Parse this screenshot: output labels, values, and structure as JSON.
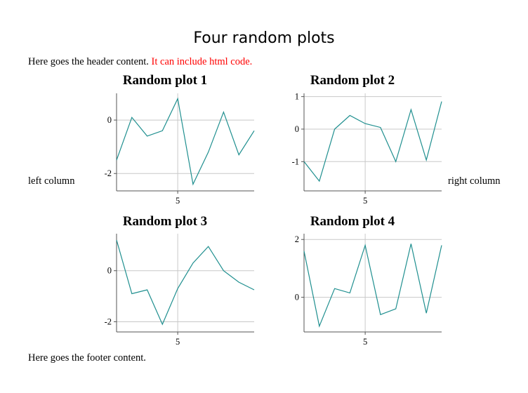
{
  "page": {
    "title": "Four random plots",
    "header_text": "Here goes the header content.",
    "header_red_text": "It can include html code.",
    "left_column": "left column",
    "right_column": "right column",
    "footer_text": "Here goes the footer content."
  },
  "colors": {
    "line": "#1f8f8f",
    "grid": "#c8c8c8",
    "axis": "#555555",
    "header_red": "#ff0000"
  },
  "chart_data": [
    {
      "type": "line",
      "title": "Random plot 1",
      "x": [
        1,
        2,
        3,
        4,
        5,
        6,
        7,
        8,
        9,
        10
      ],
      "y": [
        -1.5,
        0.1,
        -0.6,
        -0.4,
        0.8,
        -2.4,
        -1.2,
        0.3,
        -1.3,
        -0.4
      ],
      "xlim": [
        1,
        10
      ],
      "ylim": [
        -2.65,
        1.0
      ],
      "xticks": [
        5
      ],
      "yticks": [
        0,
        -2
      ],
      "grid": true
    },
    {
      "type": "line",
      "title": "Random plot 2",
      "x": [
        1,
        2,
        3,
        4,
        5,
        6,
        7,
        8,
        9,
        10
      ],
      "y": [
        -1.0,
        -1.6,
        0.0,
        0.42,
        0.17,
        0.05,
        -1.0,
        0.6,
        -0.95,
        0.85
      ],
      "xlim": [
        1,
        10
      ],
      "ylim": [
        -1.9,
        1.1
      ],
      "xticks": [
        5
      ],
      "yticks": [
        1,
        0,
        -1
      ],
      "grid": true
    },
    {
      "type": "line",
      "title": "Random plot 3",
      "x": [
        1,
        2,
        3,
        4,
        5,
        6,
        7,
        8,
        9,
        10
      ],
      "y": [
        1.2,
        -0.9,
        -0.75,
        -2.1,
        -0.7,
        0.3,
        0.95,
        0.0,
        -0.45,
        -0.75
      ],
      "xlim": [
        1,
        10
      ],
      "ylim": [
        -2.4,
        1.45
      ],
      "xticks": [
        5
      ],
      "yticks": [
        0,
        -2
      ],
      "grid": true
    },
    {
      "type": "line",
      "title": "Random plot 4",
      "x": [
        1,
        2,
        3,
        4,
        5,
        6,
        7,
        8,
        9,
        10
      ],
      "y": [
        1.6,
        -1.0,
        0.3,
        0.15,
        1.8,
        -0.6,
        -0.4,
        1.85,
        -0.55,
        1.8
      ],
      "xlim": [
        1,
        10
      ],
      "ylim": [
        -1.2,
        2.2
      ],
      "xticks": [
        5
      ],
      "yticks": [
        2,
        0
      ],
      "grid": true
    }
  ]
}
